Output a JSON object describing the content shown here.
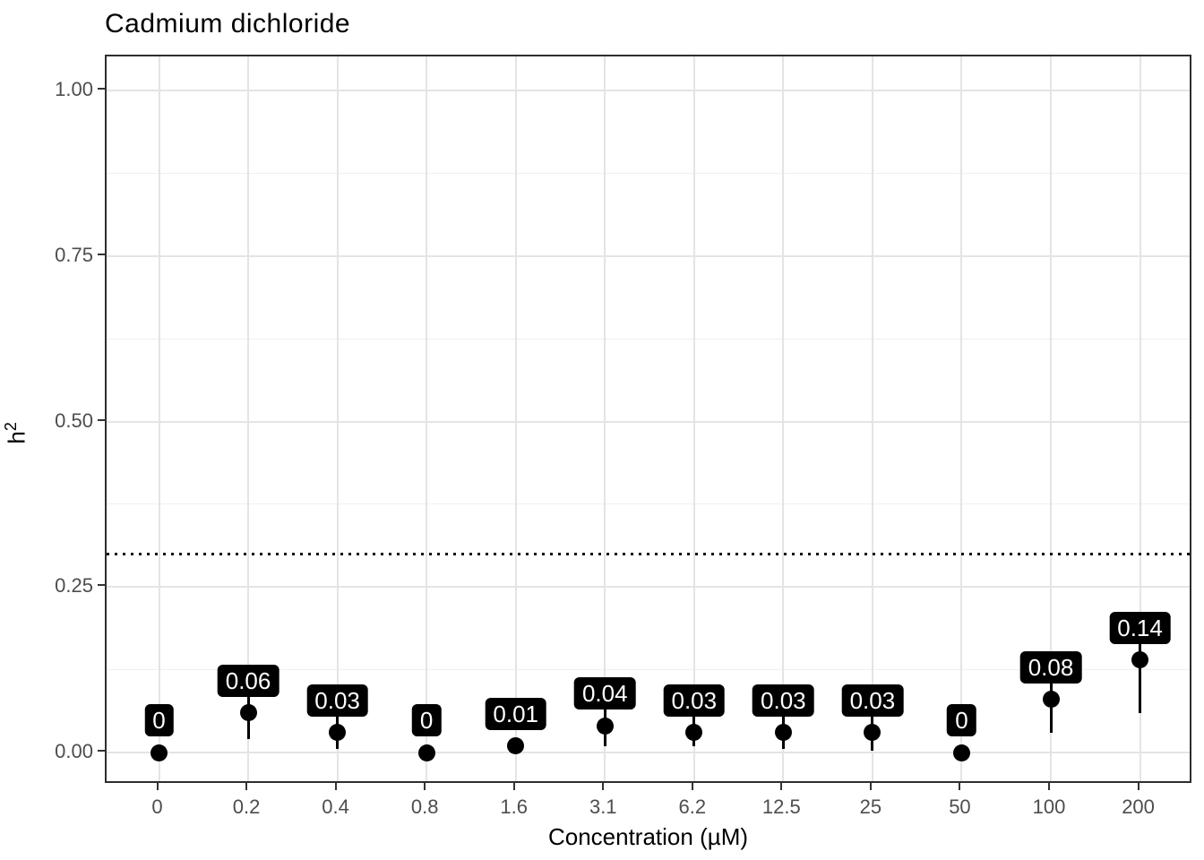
{
  "chart_data": {
    "type": "pointrange",
    "title": "Cadmium dichloride",
    "xlabel": "Concentration (µM)",
    "ylabel": {
      "base": "h",
      "sup": "2"
    },
    "x_tick_labels": [
      "0",
      "0.2",
      "0.4",
      "0.8",
      "1.6",
      "3.1",
      "6.2",
      "12.5",
      "25",
      "50",
      "100",
      "200"
    ],
    "y_tick_labels": [
      "0.00",
      "0.25",
      "0.50",
      "0.75",
      "1.00"
    ],
    "y_tick_values": [
      0,
      0.25,
      0.5,
      0.75,
      1.0
    ],
    "y_minor_values": [
      0.125,
      0.375,
      0.625,
      0.875
    ],
    "ylim": [
      -0.05,
      1.05
    ],
    "grid": "on",
    "legend": "none",
    "reference_line_y": 0.3,
    "reference_line_style": "dotted",
    "points": [
      {
        "x": "0",
        "value": 0,
        "label": "0",
        "low": 0,
        "high": 0
      },
      {
        "x": "0.2",
        "value": 0.06,
        "label": "0.06",
        "low": 0.02,
        "high": 0.1
      },
      {
        "x": "0.4",
        "value": 0.03,
        "label": "0.03",
        "low": 0.005,
        "high": 0.055
      },
      {
        "x": "0.8",
        "value": 0,
        "label": "0",
        "low": 0,
        "high": 0
      },
      {
        "x": "1.6",
        "value": 0.01,
        "label": "0.01",
        "low": 0.01,
        "high": 0.01
      },
      {
        "x": "3.1",
        "value": 0.04,
        "label": "0.04",
        "low": 0.01,
        "high": 0.07
      },
      {
        "x": "6.2",
        "value": 0.03,
        "label": "0.03",
        "low": 0.01,
        "high": 0.06
      },
      {
        "x": "12.5",
        "value": 0.03,
        "label": "0.03",
        "low": 0.005,
        "high": 0.06
      },
      {
        "x": "25",
        "value": 0.03,
        "label": "0.03",
        "low": 0.003,
        "high": 0.06
      },
      {
        "x": "50",
        "value": 0,
        "label": "0",
        "low": 0,
        "high": 0
      },
      {
        "x": "100",
        "value": 0.08,
        "label": "0.08",
        "low": 0.03,
        "high": 0.13
      },
      {
        "x": "200",
        "value": 0.14,
        "label": "0.14",
        "low": 0.06,
        "high": 0.2
      }
    ],
    "colors": {
      "point": "#000000",
      "label_background": "#000000",
      "label_text": "#ffffff",
      "grid_major": "#e4e4e4",
      "grid_minor": "#f0f0f0",
      "panel_border": "#2e2e2e",
      "axis_text": "#4d4d4d",
      "title_text": "#000000"
    }
  }
}
